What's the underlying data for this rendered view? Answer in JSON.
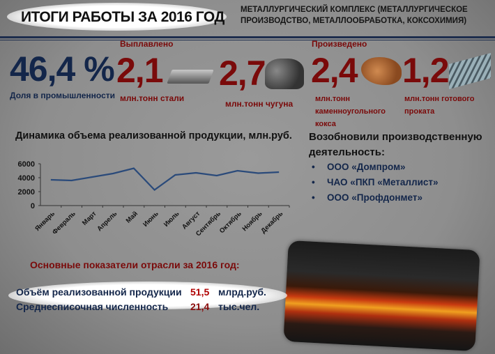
{
  "header": {
    "title": "ИТОГИ РАБОТЫ ЗА 2016 ГОД",
    "subtitle": "МЕТАЛЛУРГИЧЕСКИЙ КОМПЛЕКС (МЕТАЛЛУРГИЧЕСКОЕ ПРОИЗВОДСТВО, МЕТАЛЛООБРАБОТКА, КОКСОХИМИЯ)"
  },
  "stats": {
    "share": {
      "value": "46,4 %",
      "label": "Доля в промышленности"
    },
    "smelted_label": "Выплавлено",
    "produced_label": "Произведено",
    "steel": {
      "value": "2,1",
      "label": "млн.тонн стали",
      "icon": "steel-ingot-icon"
    },
    "iron": {
      "value": "2,7",
      "label": "млн.тонн чугуна",
      "icon": "cast-iron-icon"
    },
    "coke": {
      "value": "2,4",
      "label_lines": [
        "млн.тонн",
        "каменноугольного",
        "кокса"
      ],
      "icon": "coke-icon"
    },
    "rolled": {
      "value": "1,2",
      "label_lines": [
        "млн.тонн готового",
        "проката"
      ],
      "icon": "rolled-metal-icon"
    }
  },
  "resumed": {
    "title": "Возобновили производственную деятельность:",
    "items": [
      "ООО «Домпром»",
      "ЧАО «ПКП «Металлист»",
      "ООО «Профдонмет»"
    ]
  },
  "indicators": {
    "title": "Основные показатели отрасли за 2016 год:",
    "rows": [
      {
        "label": "Объём реализованной продукции",
        "value": "51,5",
        "unit": "млрд.руб."
      },
      {
        "label": "Среднесписочная численность",
        "value": "21,4",
        "unit": "тыс.чел."
      }
    ]
  },
  "colors": {
    "navy": "#13264a",
    "red": "#7a0a0a",
    "value_red": "#b00000",
    "line": "#2a4a7a"
  },
  "chart_data": {
    "type": "line",
    "title": "Динамика объема реализованной продукции, млн.руб.",
    "categories": [
      "Январь",
      "Февраль",
      "Март",
      "Апрель",
      "Май",
      "Июнь",
      "Июль",
      "Август",
      "Сентябрь",
      "Октябрь",
      "Ноябрь",
      "Декабрь"
    ],
    "values": [
      3700,
      3600,
      4100,
      4600,
      5350,
      2250,
      4400,
      4700,
      4300,
      5000,
      4650,
      4800
    ],
    "yticks": [
      "0",
      "2000",
      "4000",
      "6000"
    ],
    "ylim": [
      0,
      6000
    ],
    "grid": false
  }
}
